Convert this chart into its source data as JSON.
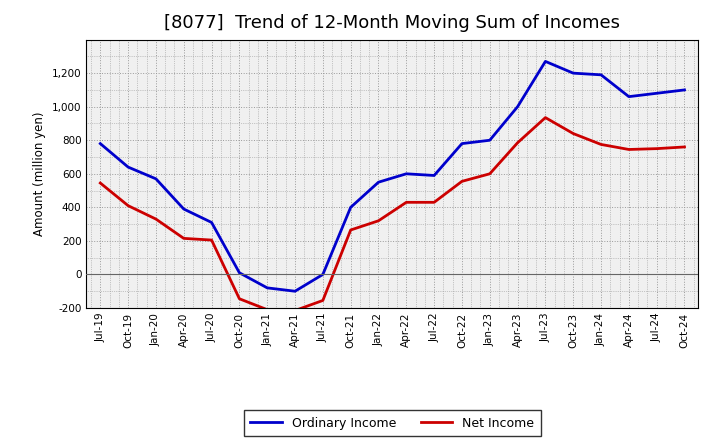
{
  "title": "[8077]  Trend of 12-Month Moving Sum of Incomes",
  "ylabel": "Amount (million yen)",
  "background_color": "#ffffff",
  "plot_bg_color": "#f0f0f0",
  "grid_color": "#999999",
  "x_labels": [
    "Jul-19",
    "Oct-19",
    "Jan-20",
    "Apr-20",
    "Jul-20",
    "Oct-20",
    "Jan-21",
    "Apr-21",
    "Jul-21",
    "Oct-21",
    "Jan-22",
    "Apr-22",
    "Jul-22",
    "Oct-22",
    "Jan-23",
    "Apr-23",
    "Jul-23",
    "Oct-23",
    "Jan-24",
    "Apr-24",
    "Jul-24",
    "Oct-24"
  ],
  "ordinary_income": [
    780,
    640,
    570,
    390,
    310,
    10,
    -80,
    -100,
    0,
    400,
    550,
    600,
    590,
    780,
    800,
    1000,
    1270,
    1200,
    1190,
    1060,
    1080,
    1100
  ],
  "net_income": [
    545,
    410,
    330,
    215,
    205,
    -145,
    -210,
    -215,
    -155,
    265,
    320,
    430,
    430,
    555,
    600,
    785,
    935,
    840,
    775,
    745,
    750,
    760
  ],
  "ordinary_color": "#0000cc",
  "net_color": "#cc0000",
  "ylim": [
    -200,
    1400
  ],
  "yticks": [
    -200,
    0,
    200,
    400,
    600,
    800,
    1000,
    1200
  ],
  "line_width": 2.0,
  "title_fontsize": 13,
  "legend_entries": [
    "Ordinary Income",
    "Net Income"
  ]
}
